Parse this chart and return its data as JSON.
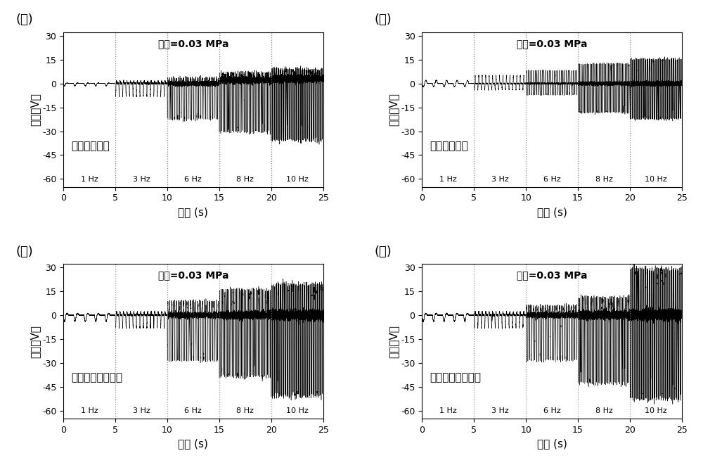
{
  "panels": [
    {
      "label": "(ａ)",
      "subtitle": "平面单层结构",
      "annotation": "压强=0.03 MPa",
      "freqs": [
        1,
        3,
        6,
        8,
        10
      ],
      "neg_amps": [
        1.5,
        8,
        22,
        32,
        38
      ],
      "pos_amps": [
        0.3,
        1.5,
        3,
        4,
        5
      ],
      "dc_offsets": [
        0,
        0,
        0,
        2,
        3
      ]
    },
    {
      "label": "(ｂ)",
      "subtitle": "平面多层结构",
      "annotation": "压强=0.03 MPa",
      "freqs": [
        1,
        3,
        6,
        8,
        10
      ],
      "neg_amps": [
        2,
        4,
        7,
        18,
        22
      ],
      "pos_amps": [
        2,
        5,
        8,
        12,
        15
      ],
      "dc_offsets": [
        0,
        0,
        0,
        0,
        0
      ]
    },
    {
      "label": "(ｃ)",
      "subtitle": "球或椭球单层结构",
      "annotation": "压强=0.03 MPa",
      "freqs": [
        1,
        3,
        6,
        8,
        10
      ],
      "neg_amps": [
        4,
        8,
        28,
        38,
        50
      ],
      "pos_amps": [
        1,
        2,
        8,
        15,
        18
      ],
      "dc_offsets": [
        0,
        0,
        0,
        0,
        0
      ]
    },
    {
      "label": "(ｄ)",
      "subtitle": "球或椭球多层结构",
      "annotation": "压强=0.03 MPa",
      "freqs": [
        1,
        3,
        6,
        8,
        10
      ],
      "neg_amps": [
        4,
        8,
        28,
        42,
        52
      ],
      "pos_amps": [
        1,
        2,
        5,
        10,
        28
      ],
      "dc_offsets": [
        0,
        0,
        0,
        0,
        0
      ]
    }
  ],
  "freq_labels": [
    "1 Hz",
    "3 Hz",
    "6 Hz",
    "8 Hz",
    "10 Hz"
  ],
  "segment_times": [
    0,
    5,
    10,
    15,
    20,
    25
  ],
  "ylim": [
    -65,
    32
  ],
  "yticks": [
    -60,
    -45,
    -30,
    -15,
    0,
    15,
    30
  ],
  "xlim": [
    0,
    25
  ],
  "xticks": [
    0,
    5,
    10,
    15,
    20,
    25
  ],
  "xlabel": "时间 (s)",
  "ylabel": "电压（V）",
  "vline_positions": [
    5,
    10,
    15,
    20
  ],
  "background_color": "white",
  "line_color": "black",
  "fontsize_label": 11,
  "fontsize_tick": 9,
  "fontsize_panel": 13,
  "fontsize_annotation": 10,
  "fontsize_subtitle": 11,
  "fontsize_freq": 8
}
